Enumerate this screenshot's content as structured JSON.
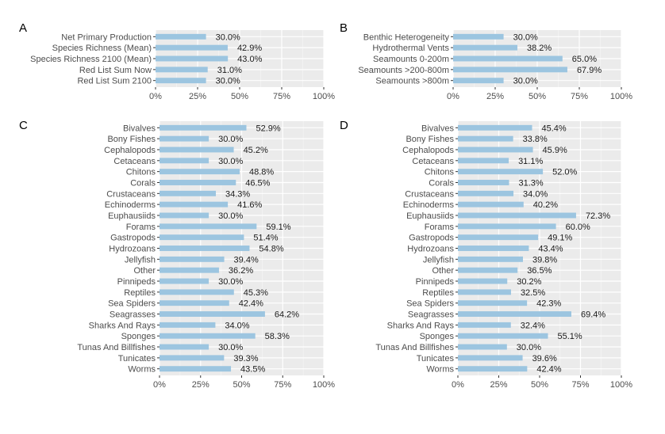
{
  "chart_data": [
    {
      "panel": "A",
      "type": "bar",
      "orientation": "horizontal",
      "categories": [
        "Net Primary Production",
        "Species Richness (Mean)",
        "Species Richness 2100 (Mean)",
        "Red List Sum Now",
        "Red List Sum 2100"
      ],
      "values": [
        30.0,
        42.9,
        43.0,
        31.0,
        30.0
      ],
      "value_labels": [
        "30.0%",
        "42.9%",
        "43.0%",
        "31.0%",
        "30.0%"
      ],
      "xlim": [
        0,
        100
      ],
      "xticks": [
        "0%",
        "25%",
        "50%",
        "75%",
        "100%"
      ],
      "grid": true,
      "bar_color": "#9cc5e0",
      "panel_background": "#ebebeb"
    },
    {
      "panel": "B",
      "type": "bar",
      "orientation": "horizontal",
      "categories": [
        "Benthic Heterogeneity",
        "Hydrothermal Vents",
        "Seamounts 0-200m",
        "Seamounts >200-800m",
        "Seamounts >800m"
      ],
      "values": [
        30.0,
        38.2,
        65.0,
        67.9,
        30.0
      ],
      "value_labels": [
        "30.0%",
        "38.2%",
        "65.0%",
        "67.9%",
        "30.0%"
      ],
      "xlim": [
        0,
        100
      ],
      "xticks": [
        "0%",
        "25%",
        "50%",
        "75%",
        "100%"
      ],
      "grid": true,
      "bar_color": "#9cc5e0",
      "panel_background": "#ebebeb"
    },
    {
      "panel": "C",
      "type": "bar",
      "orientation": "horizontal",
      "categories": [
        "Bivalves",
        "Bony Fishes",
        "Cephalopods",
        "Cetaceans",
        "Chitons",
        "Corals",
        "Crustaceans",
        "Echinoderms",
        "Euphausiids",
        "Forams",
        "Gastropods",
        "Hydrozoans",
        "Jellyfish",
        "Other",
        "Pinnipeds",
        "Reptiles",
        "Sea Spiders",
        "Seagrasses",
        "Sharks And Rays",
        "Sponges",
        "Tunas And Billfishes",
        "Tunicates",
        "Worms"
      ],
      "values": [
        52.9,
        30.0,
        45.2,
        30.0,
        48.8,
        46.5,
        34.3,
        41.6,
        30.0,
        59.1,
        51.4,
        54.8,
        39.4,
        36.2,
        30.0,
        45.3,
        42.4,
        64.2,
        34.0,
        58.3,
        30.0,
        39.3,
        43.5
      ],
      "value_labels": [
        "52.9%",
        "30.0%",
        "45.2%",
        "30.0%",
        "48.8%",
        "46.5%",
        "34.3%",
        "41.6%",
        "30.0%",
        "59.1%",
        "51.4%",
        "54.8%",
        "39.4%",
        "36.2%",
        "30.0%",
        "45.3%",
        "42.4%",
        "64.2%",
        "34.0%",
        "58.3%",
        "30.0%",
        "39.3%",
        "43.5%"
      ],
      "xlim": [
        0,
        100
      ],
      "xticks": [
        "0%",
        "25%",
        "50%",
        "75%",
        "100%"
      ],
      "grid": true,
      "bar_color": "#9cc5e0",
      "panel_background": "#ebebeb"
    },
    {
      "panel": "D",
      "type": "bar",
      "orientation": "horizontal",
      "categories": [
        "Bivalves",
        "Bony Fishes",
        "Cephalopods",
        "Cetaceans",
        "Chitons",
        "Corals",
        "Crustaceans",
        "Echinoderms",
        "Euphausiids",
        "Forams",
        "Gastropods",
        "Hydrozoans",
        "Jellyfish",
        "Other",
        "Pinnipeds",
        "Reptiles",
        "Sea Spiders",
        "Seagrasses",
        "Sharks And Rays",
        "Sponges",
        "Tunas And Billfishes",
        "Tunicates",
        "Worms"
      ],
      "values": [
        45.4,
        33.8,
        45.9,
        31.1,
        52.0,
        31.3,
        34.0,
        40.2,
        72.3,
        60.0,
        49.1,
        43.4,
        39.8,
        36.5,
        30.2,
        32.5,
        42.3,
        69.4,
        32.4,
        55.1,
        30.0,
        39.6,
        42.4
      ],
      "value_labels": [
        "45.4%",
        "33.8%",
        "45.9%",
        "31.1%",
        "52.0%",
        "31.3%",
        "34.0%",
        "40.2%",
        "72.3%",
        "60.0%",
        "49.1%",
        "43.4%",
        "39.8%",
        "36.5%",
        "30.2%",
        "32.5%",
        "42.3%",
        "69.4%",
        "32.4%",
        "55.1%",
        "30.0%",
        "39.6%",
        "42.4%"
      ],
      "xlim": [
        0,
        100
      ],
      "xticks": [
        "0%",
        "25%",
        "50%",
        "75%",
        "100%"
      ],
      "grid": true,
      "bar_color": "#9cc5e0",
      "panel_background": "#ebebeb"
    }
  ]
}
